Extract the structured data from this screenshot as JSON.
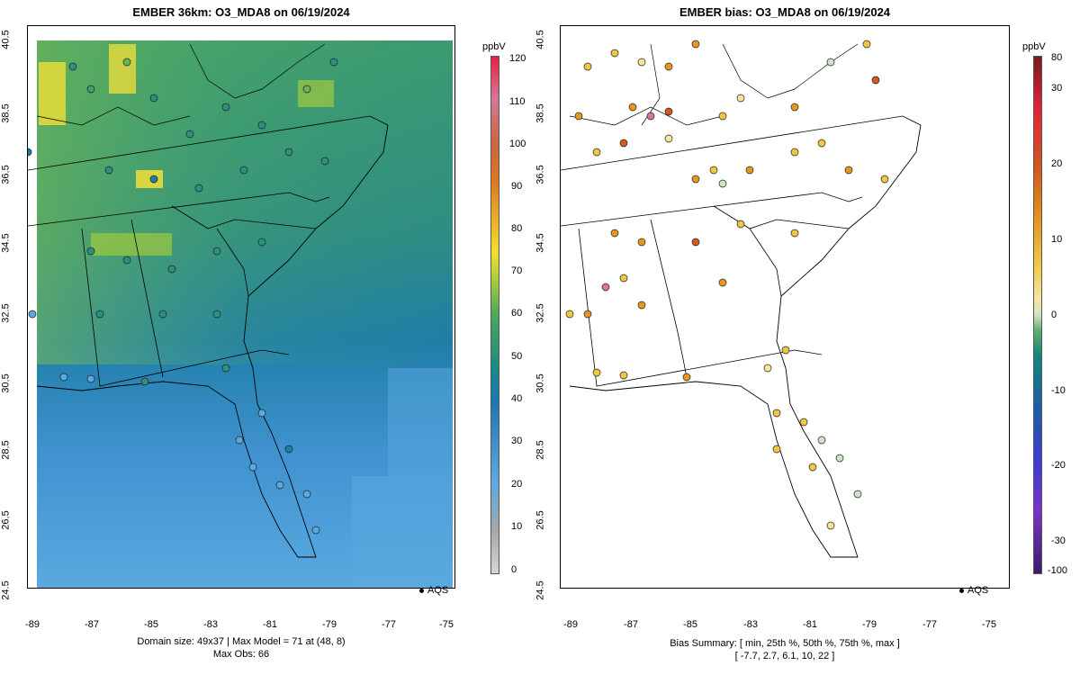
{
  "left_panel": {
    "title": "EMBER 36km: O3_MDA8 on 06/19/2024",
    "footer_line1": "Domain size: 49x37 | Max Model = 71 at (48, 8)",
    "footer_line2": "Max Obs: 66",
    "legend_unit": "ppbV",
    "legend_ticks": [
      "0",
      "10",
      "20",
      "30",
      "40",
      "50",
      "60",
      "70",
      "80",
      "90",
      "100",
      "110",
      "120"
    ],
    "aqs_label": "AQS"
  },
  "right_panel": {
    "title": "EMBER bias: O3_MDA8 on 06/19/2024",
    "footer_line1": "Bias Summary: [ min, 25th %, 50th %, 75th %, max ]",
    "footer_line2": "[ -7.7,   2.7,   6.1,   10,   22 ]",
    "legend_unit": "ppbV",
    "legend_ticks": [
      "80",
      "30",
      "20",
      "10",
      "0",
      "-10",
      "-20",
      "-30",
      "-100"
    ],
    "aqs_label": "AQS"
  },
  "axes": {
    "x_ticks": [
      "-89",
      "-87",
      "-85",
      "-83",
      "-81",
      "-79",
      "-77",
      "-75"
    ],
    "y_ticks": [
      "24.5",
      "26.5",
      "28.5",
      "30.5",
      "32.5",
      "34.5",
      "36.5",
      "38.5",
      "40.5"
    ]
  },
  "colors": {
    "ozone_scale": [
      "#d6d6d6",
      "#a8a8a8",
      "#5aa9e0",
      "#1e77b4",
      "#1d8a84",
      "#4aa95a",
      "#9fc93e",
      "#f2e02e",
      "#e8a42a",
      "#d97a22",
      "#c9673f",
      "#d6779b",
      "#e5213a"
    ],
    "bias_scale_pos": [
      "#f6e5a0",
      "#f0c840",
      "#e8961e",
      "#d25a1a",
      "#b22222",
      "#7a1a1a"
    ],
    "bias_scale_neg": [
      "#cfe3c8",
      "#5bb06a",
      "#12867a",
      "#1c5ea8",
      "#3b3bd9",
      "#7a33cc",
      "#3d1a6e"
    ]
  }
}
